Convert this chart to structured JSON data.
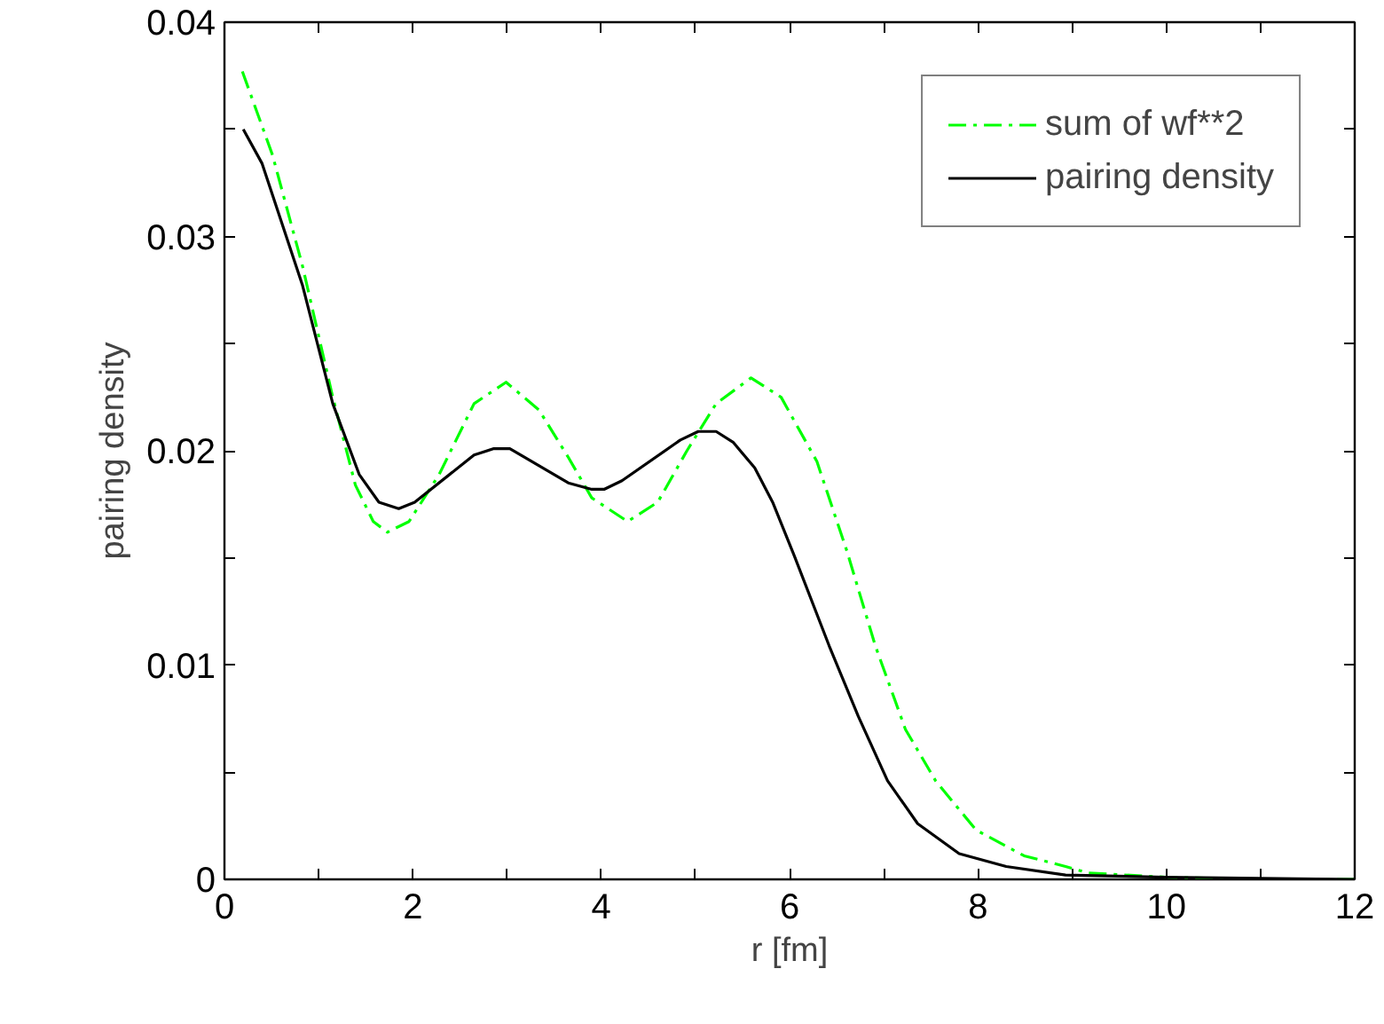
{
  "chart_data": {
    "type": "line",
    "xlabel": "r [fm]",
    "ylabel": "pairing density",
    "xlim": [
      0,
      12
    ],
    "ylim": [
      0,
      0.04
    ],
    "xticks": [
      0,
      {
        "value": 1,
        "label": null
      },
      2,
      {
        "value": 3,
        "label": null
      },
      4,
      {
        "value": 5,
        "label": null
      },
      6,
      {
        "value": 7,
        "label": null
      },
      8,
      {
        "value": 9,
        "label": null
      },
      10,
      {
        "value": 11,
        "label": null
      },
      12
    ],
    "yticks": [
      0,
      {
        "value": 0.005,
        "label": null
      },
      0.01,
      {
        "value": 0.015,
        "label": null
      },
      0.02,
      {
        "value": 0.025,
        "label": null
      },
      0.03,
      {
        "value": 0.035,
        "label": null
      },
      0.04
    ],
    "grid": false,
    "legend": "top right",
    "marker": "none",
    "series": [
      {
        "name": "sum of wf**2",
        "color": "#00ff00",
        "line_style": "dashdot",
        "x": [
          0.19,
          0.51,
          0.83,
          1.15,
          1.39,
          1.58,
          1.73,
          1.96,
          2.28,
          2.65,
          2.99,
          3.34,
          3.65,
          3.9,
          4.28,
          4.6,
          4.91,
          5.22,
          5.59,
          5.91,
          6.29,
          6.61,
          6.91,
          7.23,
          7.55,
          7.98,
          8.49,
          8.93,
          9.17,
          10,
          11,
          12
        ],
        "values": [
          0.0377,
          0.0338,
          0.0286,
          0.0225,
          0.0184,
          0.0167,
          0.0162,
          0.0167,
          0.0189,
          0.0222,
          0.0232,
          0.0219,
          0.0197,
          0.0178,
          0.0167,
          0.0176,
          0.02,
          0.0222,
          0.0234,
          0.0225,
          0.0195,
          0.0153,
          0.0109,
          0.007,
          0.0046,
          0.0023,
          0.0011,
          0.0006,
          0.0003,
          0.0001,
          0,
          0
        ]
      },
      {
        "name": "pairing density",
        "color": "#000000",
        "line_style": "solid",
        "x": [
          0.2,
          0.4,
          0.83,
          1.15,
          1.43,
          1.64,
          1.85,
          2.02,
          2.65,
          2.86,
          3.03,
          3.65,
          3.9,
          4.03,
          4.22,
          4.84,
          5.03,
          5.22,
          5.4,
          5.63,
          5.82,
          6.05,
          6.42,
          6.73,
          7.04,
          7.36,
          7.8,
          8.3,
          8.93,
          10,
          12
        ],
        "values": [
          0.035,
          0.0334,
          0.0277,
          0.0222,
          0.0189,
          0.0176,
          0.0173,
          0.0176,
          0.0198,
          0.0201,
          0.0201,
          0.0185,
          0.0182,
          0.0182,
          0.0186,
          0.0205,
          0.0209,
          0.0209,
          0.0204,
          0.0192,
          0.0176,
          0.0151,
          0.0109,
          0.0076,
          0.0046,
          0.0026,
          0.0012,
          0.0006,
          0.0002,
          0.0001,
          0
        ]
      }
    ]
  }
}
